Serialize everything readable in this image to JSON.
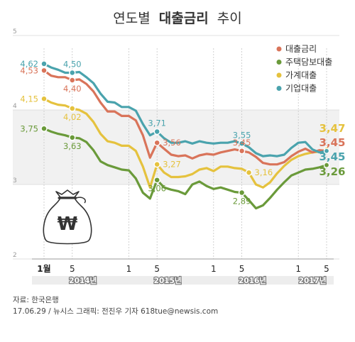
{
  "chart_data": {
    "type": "line",
    "title_light_before": "연도별",
    "title_bold": "대출금리",
    "title_light_after": "추이",
    "ylim": [
      2,
      5
    ],
    "y_ticks": [
      "2",
      "3",
      "4",
      "5"
    ],
    "x_ticks": [
      {
        "label": "1월",
        "i": 0,
        "bold": true
      },
      {
        "label": "5",
        "i": 4,
        "bold": false
      },
      {
        "label": "1",
        "i": 12,
        "bold": false
      },
      {
        "label": "5",
        "i": 16,
        "bold": false
      },
      {
        "label": "1",
        "i": 24,
        "bold": false
      },
      {
        "label": "5",
        "i": 28,
        "bold": false
      },
      {
        "label": "1",
        "i": 36,
        "bold": false
      },
      {
        "label": "5",
        "i": 40,
        "bold": false
      }
    ],
    "years": [
      {
        "label": "2014년",
        "start": 0,
        "end": 11
      },
      {
        "label": "2015년",
        "start": 12,
        "end": 23
      },
      {
        "label": "2016년",
        "start": 24,
        "end": 35
      },
      {
        "label": "2017년",
        "start": 36,
        "end": 40
      }
    ],
    "series": [
      {
        "name": "대출금리",
        "color": "#d9745a",
        "values": [
          4.53,
          4.46,
          4.44,
          4.44,
          4.4,
          4.41,
          4.35,
          4.25,
          4.1,
          3.98,
          3.98,
          3.92,
          3.92,
          3.86,
          3.66,
          3.36,
          3.56,
          3.48,
          3.4,
          3.38,
          3.39,
          3.35,
          3.39,
          3.41,
          3.4,
          3.43,
          3.45,
          3.47,
          3.45,
          3.43,
          3.37,
          3.29,
          3.27,
          3.27,
          3.3,
          3.38,
          3.44,
          3.48,
          3.43,
          3.46,
          3.45
        ],
        "labels": [
          {
            "i": 0,
            "text": "4,53",
            "pos": "left"
          },
          {
            "i": 4,
            "text": "4,40",
            "pos": "below"
          },
          {
            "i": 16,
            "text": "3,56",
            "pos": "right"
          },
          {
            "i": 28,
            "text": "3,45",
            "pos": "above"
          }
        ],
        "end_label": "3,45"
      },
      {
        "name": "주택담보대출",
        "color": "#6a9a3a",
        "values": [
          3.75,
          3.71,
          3.68,
          3.66,
          3.63,
          3.62,
          3.57,
          3.46,
          3.31,
          3.26,
          3.23,
          3.2,
          3.19,
          3.08,
          2.89,
          2.81,
          3.06,
          2.96,
          2.93,
          2.91,
          2.87,
          3.0,
          3.04,
          2.98,
          2.94,
          2.96,
          2.93,
          2.9,
          2.89,
          2.79,
          2.68,
          2.72,
          2.82,
          2.93,
          3.03,
          3.12,
          3.16,
          3.2,
          3.21,
          3.23,
          3.26
        ],
        "labels": [
          {
            "i": 0,
            "text": "3,75",
            "pos": "left"
          },
          {
            "i": 4,
            "text": "3,63",
            "pos": "below"
          },
          {
            "i": 16,
            "text": "3,06",
            "pos": "below"
          },
          {
            "i": 28,
            "text": "2,89",
            "pos": "below"
          }
        ],
        "end_label": "3,26"
      },
      {
        "name": "가계대출",
        "color": "#e5c23e",
        "values": [
          4.15,
          4.1,
          4.07,
          4.06,
          4.02,
          4.0,
          3.95,
          3.84,
          3.68,
          3.58,
          3.56,
          3.52,
          3.52,
          3.45,
          3.24,
          2.96,
          3.27,
          3.16,
          3.1,
          3.1,
          3.11,
          3.14,
          3.2,
          3.22,
          3.18,
          3.24,
          3.24,
          3.22,
          3.21,
          3.16,
          3.0,
          2.96,
          3.03,
          3.15,
          3.25,
          3.33,
          3.38,
          3.41,
          3.43,
          3.44,
          3.47
        ],
        "labels": [
          {
            "i": 0,
            "text": "4,15",
            "pos": "left"
          },
          {
            "i": 4,
            "text": "4,02",
            "pos": "below"
          },
          {
            "i": 16,
            "text": "3,27",
            "pos": "right"
          },
          {
            "i": 29,
            "text": "3,16",
            "pos": "right"
          }
        ],
        "end_label": "3,47"
      },
      {
        "name": "기업대출",
        "color": "#4aa3ad",
        "values": [
          4.62,
          4.57,
          4.54,
          4.5,
          4.5,
          4.51,
          4.44,
          4.36,
          4.22,
          4.11,
          4.1,
          4.04,
          4.04,
          3.99,
          3.81,
          3.66,
          3.71,
          3.62,
          3.56,
          3.56,
          3.58,
          3.55,
          3.58,
          3.56,
          3.55,
          3.56,
          3.56,
          3.58,
          3.55,
          3.5,
          3.42,
          3.38,
          3.39,
          3.38,
          3.4,
          3.49,
          3.56,
          3.57,
          3.47,
          3.43,
          3.45
        ],
        "labels": [
          {
            "i": 0,
            "text": "4,62",
            "pos": "left"
          },
          {
            "i": 4,
            "text": "4,50",
            "pos": "above"
          },
          {
            "i": 16,
            "text": "3,71",
            "pos": "above"
          },
          {
            "i": 28,
            "text": "3,55",
            "pos": "above"
          }
        ],
        "end_label": "3,45"
      }
    ],
    "end_label_order": [
      2,
      0,
      3,
      1
    ],
    "legend_placement": "top-right",
    "grid": true,
    "icon": "money-bag-won-icon",
    "icon_symbol": "₩"
  },
  "footer": {
    "source": "자료: 한국은행",
    "credit": "17.06.29 / 뉴시스 그래픽: 전진우 기자 618tue@newsis.com"
  }
}
